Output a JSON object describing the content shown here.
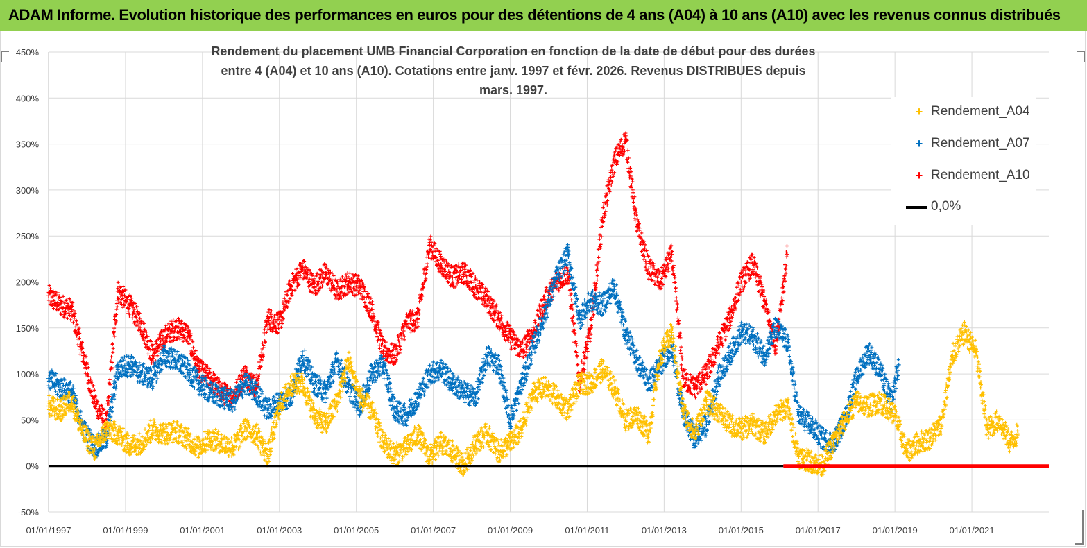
{
  "header": {
    "title": "ADAM Informe. Evolution historique des performances en euros pour des détentions de 4 ans (A04) à 10 ans (A10) avec les revenus connus distribués"
  },
  "colors": {
    "banner": "#92d050",
    "a04": "#ffc000",
    "a07": "#0070c0",
    "a10": "#ff0000",
    "zero": "#000000",
    "grid": "#d9d9d9",
    "text": "#404040"
  },
  "chart_data": {
    "type": "scatter",
    "title_line1": "Rendement du placement UMB Financial Corporation en fonction de la date de début pour des durées",
    "title_line2": "entre 4 (A04) et 10 ans (A10).  Cotations entre janv. 1997 et févr. 2026. Revenus DISTRIBUES depuis mars. 1997.",
    "xlim": [
      1997.0,
      2023.0
    ],
    "ylim": [
      -50,
      450
    ],
    "y_ticks": [
      "-50%",
      "0%",
      "50%",
      "100%",
      "150%",
      "200%",
      "250%",
      "300%",
      "350%",
      "400%",
      "450%"
    ],
    "x_ticks": [
      "01/01/1997",
      "01/01/1999",
      "01/01/2001",
      "01/01/2003",
      "01/01/2005",
      "01/01/2007",
      "01/01/2009",
      "01/01/2011",
      "01/01/2013",
      "01/01/2015",
      "01/01/2017",
      "01/01/2019",
      "01/01/2021"
    ],
    "legend_position": "right",
    "series": [
      {
        "name": "Rendement_A04",
        "marker": "+",
        "x": [
          1997.0,
          1997.3,
          1997.6,
          1997.9,
          1998.2,
          1998.5,
          1998.8,
          1999.1,
          1999.4,
          1999.7,
          2000.0,
          2000.3,
          2000.6,
          2000.9,
          2001.2,
          2001.5,
          2001.8,
          2002.1,
          2002.4,
          2002.7,
          2003.0,
          2003.3,
          2003.6,
          2003.9,
          2004.2,
          2004.5,
          2004.8,
          2005.1,
          2005.4,
          2005.7,
          2006.0,
          2006.3,
          2006.6,
          2006.9,
          2007.2,
          2007.5,
          2007.8,
          2008.1,
          2008.4,
          2008.7,
          2009.0,
          2009.3,
          2009.6,
          2009.9,
          2010.2,
          2010.5,
          2010.8,
          2011.1,
          2011.4,
          2011.7,
          2012.0,
          2012.3,
          2012.6,
          2012.9,
          2013.2,
          2013.5,
          2013.8,
          2014.1,
          2014.4,
          2014.7,
          2015.0,
          2015.3,
          2015.6,
          2015.9,
          2016.2,
          2016.5,
          2016.8,
          2017.1,
          2017.4,
          2017.7,
          2018.0,
          2018.3,
          2018.6,
          2018.9,
          2019.0,
          2019.3,
          2019.6,
          2019.9,
          2020.2,
          2020.5,
          2020.8,
          2021.1,
          2021.4,
          2021.7,
          2022.0,
          2022.2
        ],
        "y": [
          65,
          60,
          72,
          35,
          18,
          40,
          35,
          22,
          25,
          40,
          35,
          38,
          30,
          20,
          30,
          25,
          20,
          40,
          35,
          10,
          65,
          88,
          90,
          55,
          45,
          70,
          115,
          75,
          60,
          25,
          12,
          20,
          35,
          10,
          25,
          15,
          0,
          25,
          35,
          15,
          25,
          40,
          80,
          85,
          75,
          60,
          90,
          90,
          105,
          85,
          50,
          55,
          35,
          120,
          145,
          60,
          35,
          70,
          60,
          45,
          40,
          45,
          35,
          55,
          65,
          10,
          5,
          0,
          25,
          50,
          70,
          65,
          70,
          60,
          55,
          15,
          25,
          30,
          45,
          120,
          145,
          125,
          40,
          50,
          25,
          35
        ]
      },
      {
        "name": "Rendement_A07",
        "marker": "+",
        "x": [
          1997.0,
          1997.3,
          1997.6,
          1997.9,
          1998.2,
          1998.5,
          1998.8,
          1999.1,
          1999.4,
          1999.7,
          2000.0,
          2000.3,
          2000.6,
          2000.9,
          2001.2,
          2001.5,
          2001.8,
          2002.1,
          2002.4,
          2002.7,
          2003.0,
          2003.3,
          2003.6,
          2003.9,
          2004.2,
          2004.5,
          2004.8,
          2005.1,
          2005.4,
          2005.7,
          2006.0,
          2006.3,
          2006.6,
          2006.9,
          2007.2,
          2007.5,
          2007.8,
          2008.1,
          2008.4,
          2008.7,
          2009.0,
          2009.3,
          2009.6,
          2009.9,
          2010.2,
          2010.5,
          2010.8,
          2011.1,
          2011.4,
          2011.7,
          2012.0,
          2012.3,
          2012.6,
          2012.9,
          2013.2,
          2013.5,
          2013.8,
          2014.1,
          2014.4,
          2014.7,
          2015.0,
          2015.3,
          2015.6,
          2015.9,
          2016.2,
          2016.5,
          2016.8,
          2017.1,
          2017.4,
          2017.7,
          2018.0,
          2018.3,
          2018.6,
          2018.9,
          2019.1
        ],
        "y": [
          95,
          85,
          80,
          40,
          20,
          30,
          105,
          110,
          100,
          95,
          120,
          115,
          105,
          90,
          80,
          75,
          70,
          90,
          80,
          60,
          70,
          75,
          120,
          90,
          80,
          115,
          85,
          65,
          100,
          110,
          60,
          55,
          75,
          100,
          105,
          90,
          80,
          75,
          120,
          110,
          50,
          90,
          130,
          165,
          205,
          230,
          160,
          180,
          175,
          195,
          145,
          115,
          90,
          110,
          130,
          55,
          30,
          45,
          95,
          120,
          145,
          140,
          120,
          150,
          135,
          55,
          45,
          30,
          25,
          50,
          95,
          125,
          105,
          70,
          110
        ]
      },
      {
        "name": "Rendement_A10",
        "marker": "+",
        "x": [
          1997.0,
          1997.3,
          1997.6,
          1997.9,
          1998.2,
          1998.5,
          1998.8,
          1999.1,
          1999.4,
          1999.7,
          2000.0,
          2000.3,
          2000.6,
          2000.9,
          2001.2,
          2001.5,
          2001.8,
          2002.1,
          2002.4,
          2002.7,
          2003.0,
          2003.3,
          2003.6,
          2003.9,
          2004.2,
          2004.5,
          2004.8,
          2005.1,
          2005.4,
          2005.7,
          2006.0,
          2006.3,
          2006.6,
          2006.9,
          2007.2,
          2007.5,
          2007.8,
          2008.1,
          2008.4,
          2008.7,
          2009.0,
          2009.3,
          2009.6,
          2009.9,
          2010.2,
          2010.5,
          2010.8,
          2011.1,
          2011.4,
          2011.7,
          2012.0,
          2012.3,
          2012.6,
          2012.9,
          2013.2,
          2013.5,
          2013.8,
          2014.1,
          2014.4,
          2014.7,
          2015.0,
          2015.3,
          2015.6,
          2015.9,
          2016.2
        ],
        "y": [
          185,
          175,
          170,
          120,
          70,
          45,
          190,
          175,
          155,
          120,
          140,
          150,
          145,
          105,
          95,
          80,
          75,
          100,
          85,
          160,
          155,
          195,
          215,
          195,
          210,
          190,
          200,
          195,
          170,
          125,
          120,
          155,
          160,
          240,
          220,
          205,
          210,
          195,
          180,
          160,
          140,
          125,
          145,
          180,
          200,
          210,
          90,
          150,
          270,
          330,
          355,
          260,
          215,
          200,
          230,
          95,
          85,
          100,
          130,
          160,
          200,
          220,
          180,
          130,
          230
        ]
      },
      {
        "name": "0,0%",
        "marker": "line",
        "x": [
          1997.0,
          2016.1
        ],
        "y": [
          0,
          0
        ]
      }
    ],
    "red_zero_segment": {
      "x": [
        2016.1,
        2023.0
      ],
      "y": 0
    }
  }
}
